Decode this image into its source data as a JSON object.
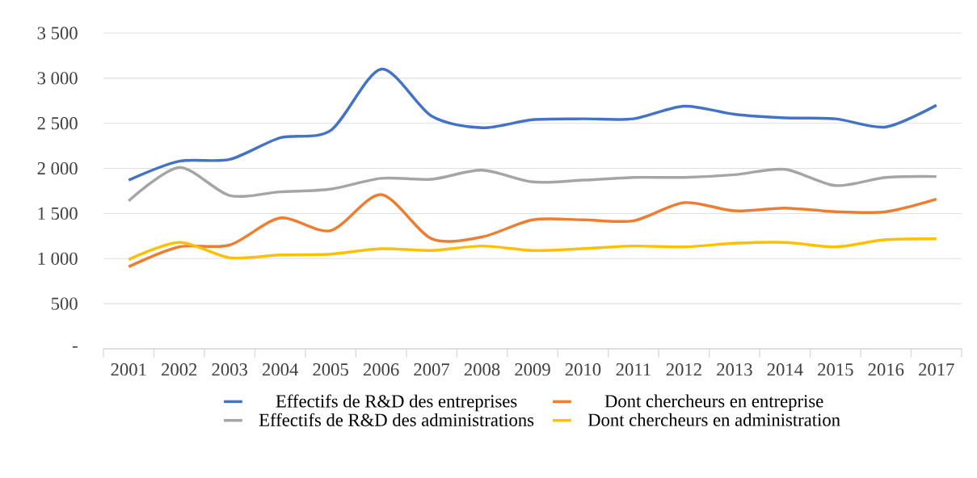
{
  "chart_data": {
    "type": "line",
    "categories": [
      "2001",
      "2002",
      "2003",
      "2004",
      "2005",
      "2006",
      "2007",
      "2008",
      "2009",
      "2010",
      "2011",
      "2012",
      "2013",
      "2014",
      "2015",
      "2016",
      "2017"
    ],
    "series": [
      {
        "name": "Effectifs de R&D des entreprises",
        "color": "#4472c4",
        "values": [
          1870,
          2080,
          2100,
          2340,
          2420,
          3100,
          2580,
          2450,
          2540,
          2550,
          2550,
          2690,
          2600,
          2560,
          2550,
          2460,
          2700
        ]
      },
      {
        "name": "Dont chercheurs en entreprise",
        "color": "#ed7d31",
        "values": [
          910,
          1130,
          1150,
          1450,
          1310,
          1710,
          1220,
          1240,
          1430,
          1430,
          1420,
          1620,
          1530,
          1560,
          1520,
          1520,
          1660
        ]
      },
      {
        "name": "Effectifs de R&D des administrations",
        "color": "#a5a5a5",
        "values": [
          1640,
          2010,
          1700,
          1740,
          1770,
          1890,
          1880,
          1980,
          1850,
          1870,
          1900,
          1900,
          1930,
          1990,
          1810,
          1900,
          1910
        ]
      },
      {
        "name": "Dont chercheurs en administration",
        "color": "#ffc000",
        "values": [
          990,
          1180,
          1010,
          1040,
          1050,
          1110,
          1090,
          1140,
          1090,
          1110,
          1140,
          1130,
          1170,
          1180,
          1130,
          1210,
          1220
        ]
      }
    ],
    "ylim": [
      0,
      3500
    ],
    "yticks": [
      {
        "value": 0,
        "label": "-"
      },
      {
        "value": 500,
        "label": "500"
      },
      {
        "value": 1000,
        "label": "1 000"
      },
      {
        "value": 1500,
        "label": "1 500"
      },
      {
        "value": 2000,
        "label": "2 000"
      },
      {
        "value": 2500,
        "label": "2 500"
      },
      {
        "value": 3000,
        "label": "3 000"
      },
      {
        "value": 3500,
        "label": "3 500"
      }
    ],
    "grid": "y",
    "legend": "bottom",
    "marker": "none",
    "line_style": "solid"
  }
}
